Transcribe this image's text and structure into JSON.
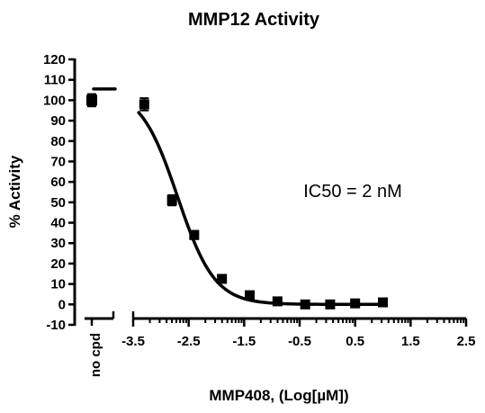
{
  "chart_data": {
    "type": "scatter",
    "title": "MMP12 Activity",
    "xlabel": "MMP408, (Log[µM])",
    "ylabel": "% Activity",
    "annotation": "IC50 = 2 nM",
    "ylim": [
      -10,
      120
    ],
    "y_ticks": [
      -10,
      0,
      10,
      20,
      30,
      40,
      50,
      60,
      70,
      80,
      90,
      100,
      110,
      120
    ],
    "xlim": [
      -3.5,
      2.5
    ],
    "x_ticks": [
      -3.5,
      -2.5,
      -1.5,
      -0.5,
      0.5,
      1.5,
      2.5
    ],
    "x_tick_labels": [
      "-3.5",
      "-2.5",
      "-1.5",
      "-0.5",
      "0.5",
      "1.5",
      "2.5"
    ],
    "control": {
      "label": "no cpd",
      "value": 100,
      "error": 3,
      "fit_level": 105.5
    },
    "series": [
      {
        "points": [
          {
            "x": -3.3,
            "y": 98,
            "error": 3
          },
          {
            "x": -2.8,
            "y": 51,
            "error": 2.5
          },
          {
            "x": -2.4,
            "y": 34,
            "error": 2
          },
          {
            "x": -1.9,
            "y": 12.5,
            "error": 1.5
          },
          {
            "x": -1.4,
            "y": 4.5,
            "error": 1
          },
          {
            "x": -0.9,
            "y": 1.5,
            "error": 1
          },
          {
            "x": -0.4,
            "y": 0,
            "error": 1
          },
          {
            "x": 0.05,
            "y": 0,
            "error": 1
          },
          {
            "x": 0.5,
            "y": 0.5,
            "error": 1
          },
          {
            "x": 1.0,
            "y": 1,
            "error": 1
          }
        ],
        "fit": {
          "top": 105.5,
          "bottom": 0,
          "log_ic50": -2.7,
          "hill_slope": 1.3,
          "x_range": [
            -3.4,
            1.0
          ]
        }
      }
    ]
  }
}
